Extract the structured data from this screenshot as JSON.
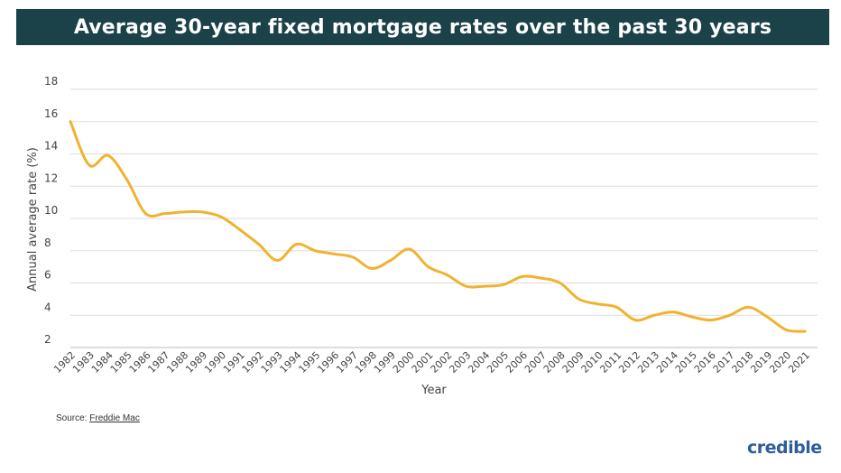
{
  "title": "Average 30-year fixed mortgage rates over the past 30 years",
  "source": {
    "label": "Source:",
    "link_text": "Freddie Mac"
  },
  "brand": "credible",
  "colors": {
    "title_bg": "#1b4149",
    "line": "#f2b230",
    "grid": "#dddddd",
    "axis": "#444444",
    "brand": "#2f5d9b"
  },
  "chart_data": {
    "type": "line",
    "title": "Average 30-year fixed mortgage rates over the past 30 years",
    "xlabel": "Year",
    "ylabel": "Annual average rate (%)",
    "ylim": [
      2,
      18
    ],
    "yticks": [
      2,
      4,
      6,
      8,
      10,
      12,
      14,
      16,
      18
    ],
    "grid": true,
    "x": [
      "1982",
      "1983",
      "1984",
      "1985",
      "1986",
      "1987",
      "1988",
      "1989",
      "1990",
      "1991",
      "1992",
      "1993",
      "1994",
      "1995",
      "1996",
      "1997",
      "1998",
      "1999",
      "2000",
      "2001",
      "2002",
      "2003",
      "2004",
      "2005",
      "2006",
      "2007",
      "2008",
      "2009",
      "2010",
      "2011",
      "2012",
      "2013",
      "2014",
      "2015",
      "2016",
      "2017",
      "2018",
      "2019",
      "2020",
      "2021"
    ],
    "series": [
      {
        "values": [
          16.0,
          13.3,
          13.9,
          12.4,
          10.3,
          10.3,
          10.4,
          10.4,
          10.1,
          9.3,
          8.4,
          7.4,
          8.4,
          8.0,
          7.8,
          7.6,
          6.9,
          7.4,
          8.1,
          7.0,
          6.5,
          5.8,
          5.8,
          5.9,
          6.4,
          6.3,
          6.0,
          5.0,
          4.7,
          4.5,
          3.7,
          4.0,
          4.2,
          3.9,
          3.7,
          4.0,
          4.5,
          3.9,
          3.1,
          3.0
        ]
      }
    ]
  }
}
